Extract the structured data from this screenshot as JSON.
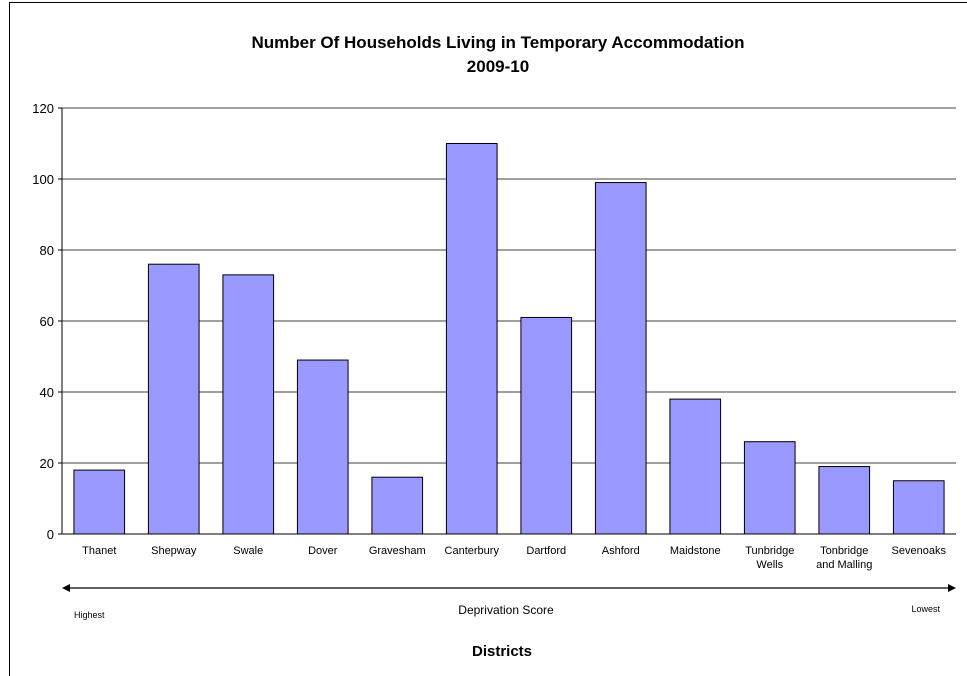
{
  "chart_data": {
    "type": "bar",
    "title": [
      "Number Of Households Living in Temporary Accommodation",
      "2009-10"
    ],
    "categories": [
      "Thanet",
      "Shepway",
      "Swale",
      "Dover",
      "Gravesham",
      "Canterbury",
      "Dartford",
      "Ashford",
      "Maidstone",
      "Tunbridge\nWells",
      "Tonbridge\nand Malling",
      "Sevenoaks"
    ],
    "values": [
      18,
      76,
      73,
      49,
      16,
      110,
      61,
      99,
      38,
      26,
      19,
      15
    ],
    "color": "#9999ff",
    "x_label": "Districts",
    "annotations": [
      "Highest",
      "Deprivation Score",
      "Lowest"
    ],
    "ylim": [
      0,
      120
    ],
    "yticks": [
      0,
      20,
      40,
      60,
      80,
      100,
      120
    ],
    "grid": true
  }
}
